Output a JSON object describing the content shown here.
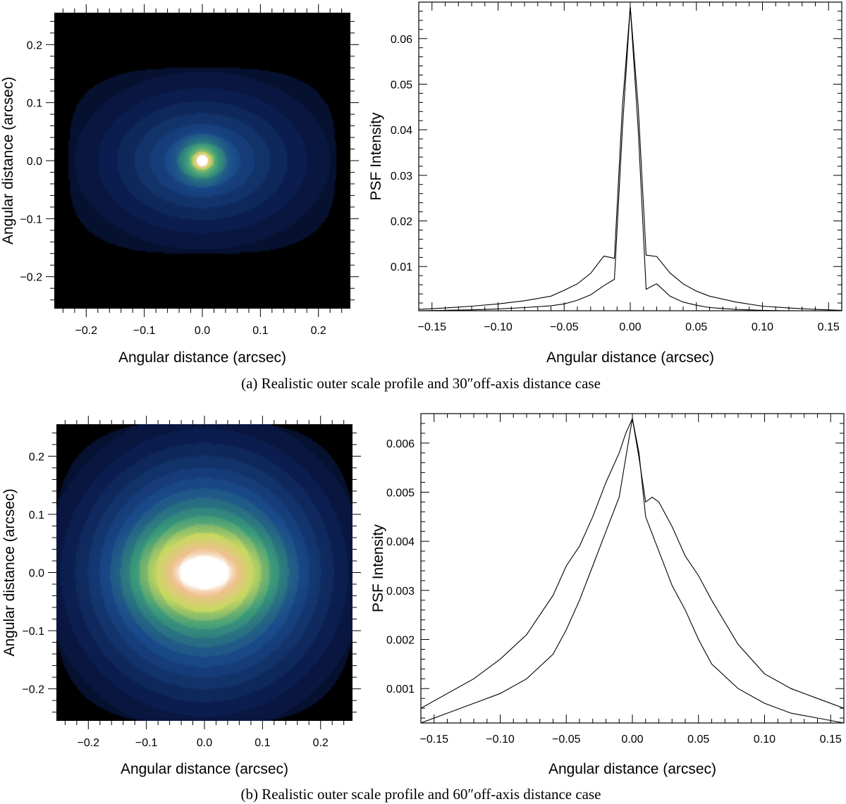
{
  "figure": {
    "caption_a": "(a)  Realistic outer scale profile and 30″off-axis distance case",
    "caption_b": "(b)  Realistic outer scale profile and 60″off-axis distance case"
  },
  "chart_data": [
    {
      "type": "heatmap",
      "panel": "a-left",
      "title": "",
      "xlabel": "Angular distance (arcsec)",
      "ylabel": "Angular distance (arcsec)",
      "xlim": [
        -0.255,
        0.255
      ],
      "ylim": [
        -0.255,
        0.255
      ],
      "xticks": [
        -0.2,
        -0.1,
        0.0,
        0.1,
        0.2
      ],
      "xtick_labels": [
        "−0.2",
        "−0.1",
        "0.0",
        "0.1",
        "0.2"
      ],
      "yticks": [
        -0.2,
        -0.1,
        0.0,
        0.1,
        0.2
      ],
      "ytick_labels": [
        "−0.2",
        "−0.1",
        "0.0",
        "0.1",
        "0.2"
      ],
      "colormap": [
        "#000000",
        "#0a1a4a",
        "#1a4a8a",
        "#3a9a7a",
        "#c8d860",
        "#f0c090",
        "#ffffff"
      ],
      "background": "#000000",
      "halo": {
        "shape": "rounded-rectangle",
        "half_width": 0.23,
        "half_height": 0.16,
        "peak_level": 0.32
      },
      "core": {
        "sigma_x": 0.006,
        "sigma_y": 0.006,
        "peak_level": 1.0
      }
    },
    {
      "type": "line",
      "panel": "a-right",
      "title": "",
      "xlabel": "Angular distance (arcsec)",
      "ylabel": "PSF Intensity",
      "xlim": [
        -0.16,
        0.16
      ],
      "ylim": [
        0.0003,
        0.068
      ],
      "xticks": [
        -0.15,
        -0.1,
        -0.05,
        0.0,
        0.05,
        0.1,
        0.15
      ],
      "xtick_labels": [
        "−0.15",
        "−0.10",
        "−0.05",
        "0.00",
        "0.05",
        "0.10",
        "0.15"
      ],
      "yticks": [
        0.01,
        0.02,
        0.03,
        0.04,
        0.05,
        0.06
      ],
      "ytick_labels": [
        "0.01",
        "0.02",
        "0.03",
        "0.04",
        "0.05",
        "0.06"
      ],
      "grid": false,
      "series": [
        {
          "x": [
            -0.16,
            -0.14,
            -0.12,
            -0.1,
            -0.08,
            -0.06,
            -0.05,
            -0.04,
            -0.03,
            -0.02,
            -0.012,
            -0.006,
            0.0,
            0.006,
            0.012,
            0.02,
            0.03,
            0.04,
            0.05,
            0.06,
            0.08,
            0.1,
            0.12,
            0.14,
            0.16
          ],
          "values": [
            0.0006,
            0.0009,
            0.0013,
            0.0018,
            0.0025,
            0.0035,
            0.0048,
            0.0062,
            0.0085,
            0.0123,
            0.0118,
            0.045,
            0.067,
            0.045,
            0.0125,
            0.0122,
            0.0086,
            0.0062,
            0.0046,
            0.0035,
            0.0022,
            0.0013,
            0.0009,
            0.0006,
            0.0004
          ]
        },
        {
          "x": [
            -0.16,
            -0.14,
            -0.12,
            -0.1,
            -0.08,
            -0.06,
            -0.05,
            -0.04,
            -0.03,
            -0.02,
            -0.012,
            -0.006,
            0.0,
            0.006,
            0.012,
            0.017,
            0.02,
            0.03,
            0.04,
            0.05,
            0.06,
            0.08,
            0.1,
            0.12,
            0.14,
            0.16
          ],
          "values": [
            0.0003,
            0.0004,
            0.0005,
            0.0007,
            0.001,
            0.0014,
            0.0018,
            0.0026,
            0.0038,
            0.0058,
            0.0072,
            0.04,
            0.067,
            0.04,
            0.005,
            0.0058,
            0.0062,
            0.0035,
            0.0022,
            0.0015,
            0.001,
            0.0006,
            0.0004,
            0.0003,
            0.0003,
            0.0003
          ]
        }
      ]
    },
    {
      "type": "heatmap",
      "panel": "b-left",
      "title": "",
      "xlabel": "Angular distance (arcsec)",
      "ylabel": "Angular distance (arcsec)",
      "xlim": [
        -0.255,
        0.255
      ],
      "ylim": [
        -0.255,
        0.255
      ],
      "xticks": [
        -0.2,
        -0.1,
        0.0,
        0.1,
        0.2
      ],
      "xtick_labels": [
        "−0.2",
        "−0.1",
        "0.0",
        "0.1",
        "0.2"
      ],
      "yticks": [
        -0.2,
        -0.1,
        0.0,
        0.1,
        0.2
      ],
      "ytick_labels": [
        "−0.2",
        "−0.1",
        "0.0",
        "0.1",
        "0.2"
      ],
      "colormap": [
        "#000000",
        "#0a1a4a",
        "#1a4a8a",
        "#3a9a7a",
        "#c8d860",
        "#f0c090",
        "#ffffff"
      ],
      "background": "#000000",
      "halo": {
        "shape": "rounded-rectangle",
        "half_width": 0.26,
        "half_height": 0.26,
        "peak_level": 0.62
      },
      "core": {
        "sigma_x": 0.02,
        "sigma_y": 0.012,
        "peak_level": 1.0
      }
    },
    {
      "type": "line",
      "panel": "b-right",
      "title": "",
      "xlabel": "Angular distance (arcsec)",
      "ylabel": "PSF Intensity",
      "xlim": [
        -0.16,
        0.16
      ],
      "ylim": [
        0.0003,
        0.0066
      ],
      "xticks": [
        -0.15,
        -0.1,
        -0.05,
        0.0,
        0.05,
        0.1,
        0.15
      ],
      "xtick_labels": [
        "−0.15",
        "−0.10",
        "−0.05",
        "0.00",
        "0.05",
        "0.10",
        "0.15"
      ],
      "yticks": [
        0.001,
        0.002,
        0.003,
        0.004,
        0.005,
        0.006
      ],
      "ytick_labels": [
        "0.001",
        "0.002",
        "0.003",
        "0.004",
        "0.005",
        "0.006"
      ],
      "grid": false,
      "series": [
        {
          "x": [
            -0.16,
            -0.14,
            -0.12,
            -0.1,
            -0.08,
            -0.06,
            -0.05,
            -0.04,
            -0.03,
            -0.02,
            -0.01,
            -0.005,
            0.0,
            0.005,
            0.01,
            0.015,
            0.02,
            0.03,
            0.04,
            0.05,
            0.06,
            0.08,
            0.1,
            0.12,
            0.14,
            0.16
          ],
          "values": [
            0.0006,
            0.0009,
            0.0012,
            0.0016,
            0.0021,
            0.0029,
            0.0035,
            0.0039,
            0.0045,
            0.0052,
            0.0058,
            0.0062,
            0.0065,
            0.0057,
            0.0048,
            0.0049,
            0.0048,
            0.0043,
            0.0037,
            0.0033,
            0.0028,
            0.0019,
            0.0013,
            0.001,
            0.0008,
            0.0006
          ]
        },
        {
          "x": [
            -0.16,
            -0.14,
            -0.12,
            -0.1,
            -0.08,
            -0.06,
            -0.05,
            -0.04,
            -0.03,
            -0.02,
            -0.01,
            -0.005,
            0.0,
            0.005,
            0.01,
            0.02,
            0.03,
            0.04,
            0.05,
            0.06,
            0.08,
            0.1,
            0.12,
            0.14,
            0.16
          ],
          "values": [
            0.0003,
            0.0005,
            0.0007,
            0.0009,
            0.0012,
            0.0017,
            0.0022,
            0.0028,
            0.0035,
            0.0042,
            0.0049,
            0.0057,
            0.0065,
            0.0058,
            0.0045,
            0.0038,
            0.0031,
            0.0026,
            0.002,
            0.0015,
            0.001,
            0.0007,
            0.0005,
            0.0004,
            0.0003
          ]
        }
      ]
    }
  ]
}
